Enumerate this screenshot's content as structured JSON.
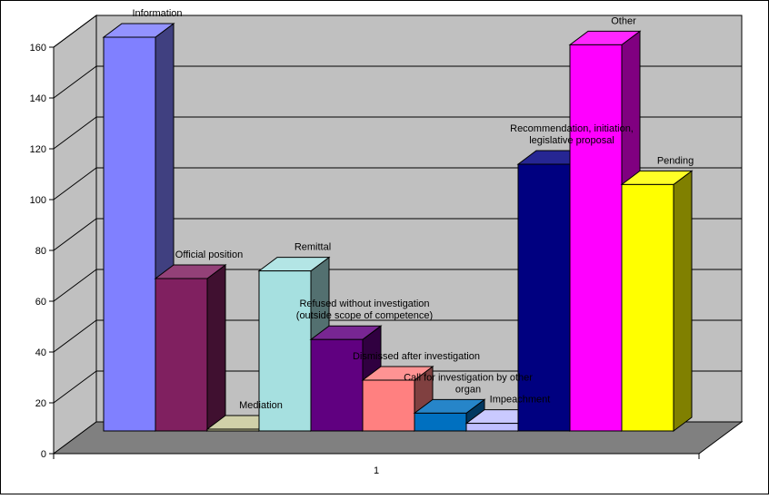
{
  "chart_data": {
    "type": "bar",
    "style": "3d-clustered-column",
    "x_category": "1",
    "ylim": [
      0,
      160
    ],
    "yticks": [
      0,
      20,
      40,
      60,
      80,
      100,
      120,
      140,
      160
    ],
    "ytick_labels": [
      "0",
      "20",
      "40",
      "60",
      "80",
      "100",
      "120",
      "140",
      "160"
    ],
    "grid": true,
    "legend": "none",
    "series": [
      {
        "name": "Information",
        "value": 155,
        "color": "#8080ff",
        "label_lines": [
          "Information"
        ]
      },
      {
        "name": "Official position",
        "value": 60,
        "color": "#802060",
        "label_lines": [
          "Official position"
        ]
      },
      {
        "name": "Mediation",
        "value": 0.5,
        "color": "#c8c89a",
        "label_lines": [
          "Mediation"
        ]
      },
      {
        "name": "Remittal",
        "value": 63,
        "color": "#a6e0e0",
        "label_lines": [
          "Remittal"
        ]
      },
      {
        "name": "Refused without investigation (outside scope of competence)",
        "value": 36,
        "color": "#600080",
        "label_lines": [
          "Refused without investigation",
          "(outside scope of competence)"
        ]
      },
      {
        "name": "Dismissed after investigation",
        "value": 20,
        "color": "#ff8080",
        "label_lines": [
          "Dismissed after investigation"
        ]
      },
      {
        "name": "Call for investigation by other organ",
        "value": 7,
        "color": "#0070c0",
        "label_lines": [
          "Call for investigation by other",
          "organ"
        ]
      },
      {
        "name": "Impeachment",
        "value": 3,
        "color": "#c0c0ff",
        "label_lines": [
          "Impeachment"
        ]
      },
      {
        "name": "Recommendation, initiation, legislative proposal",
        "value": 105,
        "color": "#000080",
        "label_lines": [
          "Recommendation, initiation,",
          "legislative proposal"
        ]
      },
      {
        "name": "Other",
        "value": 152,
        "color": "#ff00ff",
        "label_lines": [
          "Other"
        ]
      },
      {
        "name": "Pending",
        "value": 97,
        "color": "#ffff00",
        "label_lines": [
          "Pending"
        ]
      }
    ],
    "colors": {
      "back_wall": "#c0c0c0",
      "floor": "#808080",
      "gridline": "#000000"
    }
  }
}
